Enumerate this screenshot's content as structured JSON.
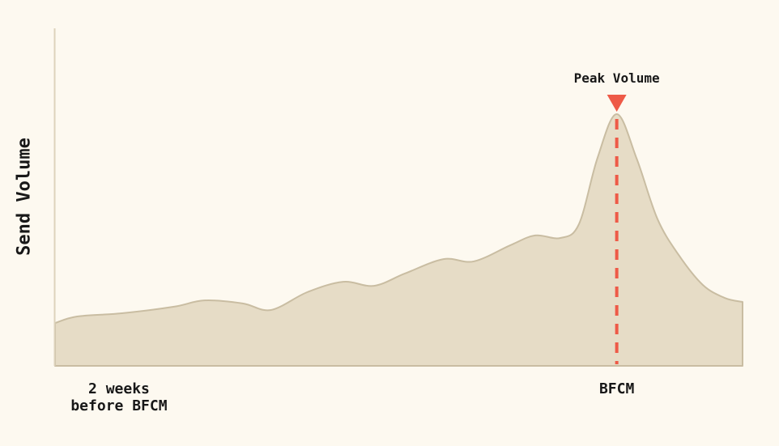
{
  "chart": {
    "y_axis_label": "Send Volume",
    "peak_annotation": "Peak Volume",
    "x_tick_left": "2 weeks\nbefore BFCM",
    "x_tick_peak": "BFCM"
  },
  "colors": {
    "background": "#fdf9f0",
    "area_fill": "#e6dcc6",
    "area_stroke": "#c9bda2",
    "axis_line": "#ddd3bc",
    "accent_red": "#ee5a47",
    "text": "#181818"
  },
  "chart_data": {
    "type": "area",
    "title": "",
    "xlabel": "",
    "ylabel": "Send Volume",
    "grid": false,
    "legend": "none",
    "x_unit": "percent_of_timeline",
    "y_unit": "relative_send_volume_peak_100",
    "x_range": [
      0,
      100
    ],
    "y_range": [
      0,
      100
    ],
    "x_axis_ticks": [
      {
        "label": "2 weeks before BFCM",
        "x": 9.3
      },
      {
        "label": "BFCM",
        "x": 81.7
      }
    ],
    "annotations": [
      {
        "text": "Peak Volume",
        "x": 81.7,
        "y": 100,
        "marker": "red-down-triangle",
        "line": "red-dashed-vertical"
      }
    ],
    "peak": {
      "x": 81.7,
      "y": 100
    },
    "series": [
      {
        "name": "Send Volume",
        "points": [
          [
            0,
            17.0
          ],
          [
            3.2,
            19.6
          ],
          [
            9.7,
            20.9
          ],
          [
            17.3,
            23.5
          ],
          [
            21.7,
            26.0
          ],
          [
            27.3,
            24.8
          ],
          [
            31.4,
            22.2
          ],
          [
            36.7,
            29.3
          ],
          [
            41.9,
            33.4
          ],
          [
            46.4,
            31.8
          ],
          [
            50.9,
            36.7
          ],
          [
            56.5,
            42.4
          ],
          [
            60.9,
            41.5
          ],
          [
            66.2,
            47.9
          ],
          [
            69.8,
            51.8
          ],
          [
            73.5,
            50.8
          ],
          [
            76.2,
            56.3
          ],
          [
            78.9,
            82.6
          ],
          [
            81.7,
            100
          ],
          [
            84.6,
            82.3
          ],
          [
            87.6,
            58.5
          ],
          [
            90.7,
            44.1
          ],
          [
            94.2,
            32.2
          ],
          [
            97.4,
            27.0
          ],
          [
            100,
            25.4
          ]
        ]
      }
    ]
  }
}
